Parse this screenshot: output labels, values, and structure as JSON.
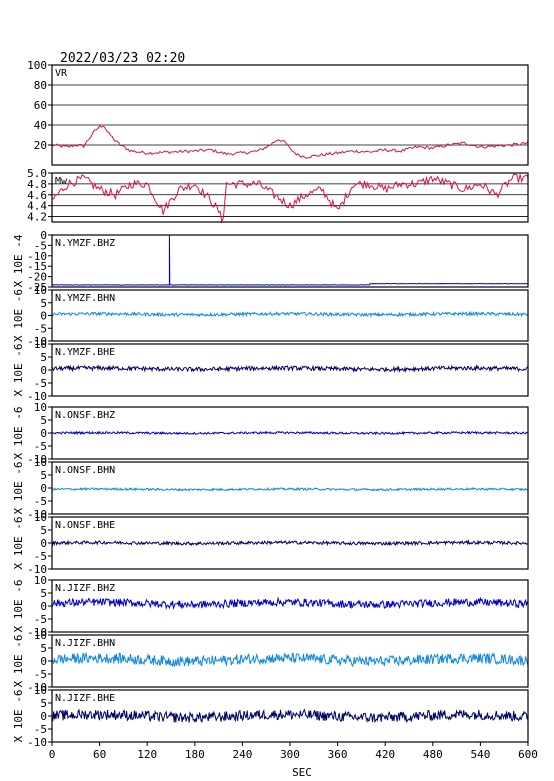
{
  "header": {
    "timestamp": "2022/03/23 02:20"
  },
  "colors": {
    "vr": "#dd1144",
    "mw": "#dd1144",
    "dark": "#000066",
    "blue": "#0000cc",
    "light": "#1188dd",
    "grid": "#000000",
    "frame": "#000000"
  },
  "chart_data": {
    "type": "line",
    "x_axis": {
      "label": "SEC",
      "range": [
        0,
        600
      ],
      "ticks": [
        "0",
        "60",
        "120",
        "180",
        "240",
        "300",
        "360",
        "420",
        "480",
        "540",
        "600"
      ]
    },
    "panels": [
      {
        "id": "vr",
        "label": "VR",
        "ylim": [
          0,
          100
        ],
        "ticks": [
          "20",
          "40",
          "60",
          "80",
          "100"
        ],
        "tick_values": [
          20,
          40,
          60,
          80,
          100
        ],
        "grid": true,
        "color_key": "vr",
        "ylabel": "",
        "kind": "vr",
        "x": [
          0,
          10,
          20,
          30,
          40,
          50,
          55,
          60,
          65,
          70,
          80,
          90,
          100,
          120,
          150,
          180,
          200,
          220,
          240,
          260,
          275,
          285,
          295,
          300,
          310,
          320,
          340,
          360,
          380,
          400,
          420,
          440,
          460,
          480,
          500,
          520,
          540,
          560,
          580,
          600
        ],
        "y": [
          20,
          19,
          18,
          20,
          19,
          30,
          35,
          38,
          40,
          33,
          24,
          18,
          14,
          12,
          13,
          14,
          15,
          11,
          12,
          14,
          20,
          26,
          22,
          16,
          10,
          8,
          10,
          12,
          14,
          13,
          15,
          14,
          18,
          17,
          20,
          22,
          18,
          19,
          20,
          22
        ]
      },
      {
        "id": "mw",
        "label": "Mw",
        "ylim": [
          4.1,
          5.0
        ],
        "ticks": [
          "4.2",
          "4.4",
          "4.6",
          "4.8",
          "5.0"
        ],
        "tick_values": [
          4.2,
          4.4,
          4.6,
          4.8,
          5.0
        ],
        "grid": true,
        "color_key": "mw",
        "ylabel": "",
        "kind": "mw",
        "x": [
          0,
          20,
          40,
          60,
          80,
          100,
          120,
          140,
          160,
          180,
          200,
          210,
          215,
          220,
          240,
          260,
          280,
          300,
          320,
          340,
          360,
          380,
          400,
          420,
          440,
          460,
          480,
          500,
          520,
          540,
          560,
          580,
          600
        ],
        "y": [
          4.5,
          4.8,
          4.9,
          4.7,
          4.6,
          4.8,
          4.8,
          4.3,
          4.7,
          4.8,
          4.5,
          4.3,
          4.1,
          4.8,
          4.8,
          4.8,
          4.6,
          4.4,
          4.6,
          4.7,
          4.3,
          4.8,
          4.8,
          4.7,
          4.8,
          4.8,
          4.9,
          4.8,
          4.7,
          4.8,
          4.6,
          4.9,
          4.9
        ]
      },
      {
        "id": "ymzf_bhz",
        "label": "N.YMZF.BHZ",
        "ylim": [
          -25,
          0
        ],
        "ticks": [
          "-25",
          "-20",
          "-15",
          "-10",
          "-5",
          "0"
        ],
        "tick_values": [
          -25,
          -20,
          -15,
          -10,
          -5,
          0
        ],
        "ylabel": "X 10E -4",
        "color_key": "blue",
        "kind": "flat",
        "level": -24,
        "amp": 0.2,
        "spike_at": 148,
        "spike_to": 0
      },
      {
        "id": "ymzf_bhn",
        "label": "N.YMZF.BHN",
        "ylim": [
          -10,
          10
        ],
        "ticks": [
          "-10",
          "-5",
          "0",
          "5",
          "10"
        ],
        "tick_values": [
          -10,
          -5,
          0,
          5,
          10
        ],
        "ylabel": "X 10E -6",
        "color_key": "light",
        "kind": "noise",
        "level": 0.5,
        "amp": 0.6
      },
      {
        "id": "ymzf_bhe",
        "label": "N.YMZF.BHE",
        "ylim": [
          -10,
          10
        ],
        "ticks": [
          "-10",
          "-5",
          "0",
          "5",
          "10"
        ],
        "tick_values": [
          -10,
          -5,
          0,
          5,
          10
        ],
        "ylabel": "X 10E -6",
        "color_key": "dark",
        "kind": "noise",
        "level": 0.5,
        "amp": 0.8
      },
      {
        "id": "onsf_bhz",
        "label": "N.ONSF.BHZ",
        "ylim": [
          -10,
          10
        ],
        "ticks": [
          "-10",
          "-5",
          "0",
          "5",
          "10"
        ],
        "tick_values": [
          -10,
          -5,
          0,
          5,
          10
        ],
        "ylabel": "X 10E -6",
        "color_key": "blue",
        "kind": "noise",
        "level": 0,
        "amp": 0.4
      },
      {
        "id": "onsf_bhn",
        "label": "N.ONSF.BHN",
        "ylim": [
          -10,
          10
        ],
        "ticks": [
          "-10",
          "-5",
          "0",
          "5",
          "10"
        ],
        "tick_values": [
          -10,
          -5,
          0,
          5,
          10
        ],
        "ylabel": "X 10E -6",
        "color_key": "light",
        "kind": "noise",
        "level": -0.5,
        "amp": 0.4
      },
      {
        "id": "onsf_bhe",
        "label": "N.ONSF.BHE",
        "ylim": [
          -10,
          10
        ],
        "ticks": [
          "-10",
          "-5",
          "0",
          "5",
          "10"
        ],
        "tick_values": [
          -10,
          -5,
          0,
          5,
          10
        ],
        "ylabel": "X 10E -6",
        "color_key": "dark",
        "kind": "noise",
        "level": 0,
        "amp": 0.6
      },
      {
        "id": "jizf_bhz",
        "label": "N.JIZF.BHZ",
        "ylim": [
          -10,
          10
        ],
        "ticks": [
          "-10",
          "-5",
          "0",
          "5",
          "10"
        ],
        "tick_values": [
          -10,
          -5,
          0,
          5,
          10
        ],
        "ylabel": "X 10E -6",
        "color_key": "blue",
        "kind": "noise",
        "level": 1,
        "amp": 1.5
      },
      {
        "id": "jizf_bhn",
        "label": "N.JIZF.BHN",
        "ylim": [
          -10,
          10
        ],
        "ticks": [
          "-10",
          "-5",
          "0",
          "5",
          "10"
        ],
        "tick_values": [
          -10,
          -5,
          0,
          5,
          10
        ],
        "ylabel": "X 10E -6",
        "color_key": "light",
        "kind": "noise",
        "level": 0.5,
        "amp": 2.0
      },
      {
        "id": "jizf_bhe",
        "label": "N.JIZF.BHE",
        "ylim": [
          -10,
          10
        ],
        "ticks": [
          "-10",
          "-5",
          "0",
          "5",
          "10"
        ],
        "tick_values": [
          -10,
          -5,
          0,
          5,
          10
        ],
        "ylabel": "X 10E -6",
        "color_key": "dark",
        "kind": "noise",
        "level": 0,
        "amp": 2.0
      }
    ]
  }
}
